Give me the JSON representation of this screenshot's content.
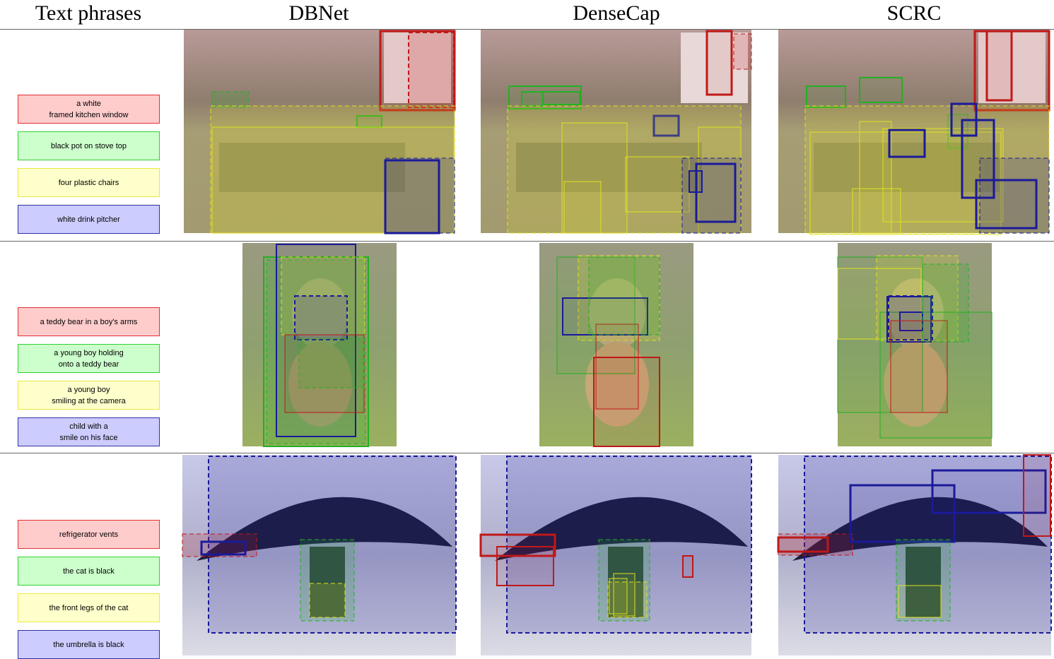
{
  "headers": [
    "Text phrases",
    "DBNet",
    "DenseCap",
    "SCRC"
  ],
  "rows": [
    {
      "phrases": [
        "a white\nframed kitchen window",
        "black pot on stove top",
        "four plastic chairs",
        "white drink pitcher"
      ]
    },
    {
      "phrases": [
        "a teddy bear in a boy's arms",
        "a young boy holding\nonto a teddy bear",
        "a young boy\nsmiling at the camera",
        "child with a\nsmile on his face"
      ]
    },
    {
      "phrases": [
        "refrigerator vents",
        "the cat is black",
        "the front legs of the cat",
        "the umbrella is black"
      ]
    }
  ]
}
